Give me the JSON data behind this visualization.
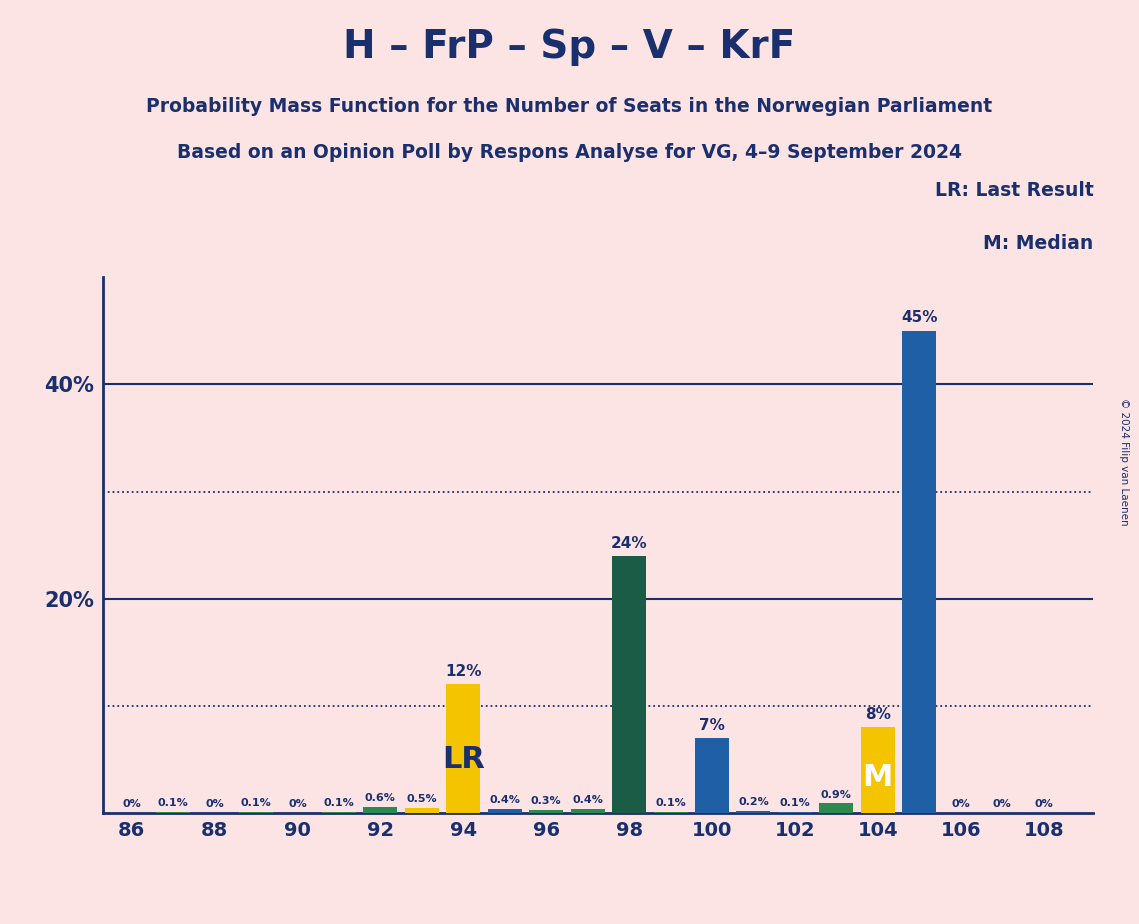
{
  "title": "H – FrP – Sp – V – KrF",
  "subtitle1": "Probability Mass Function for the Number of Seats in the Norwegian Parliament",
  "subtitle2": "Based on an Opinion Poll by Respons Analyse for VG, 4–9 September 2024",
  "copyright": "© 2024 Filip van Laenen",
  "background_color": "#fce4e4",
  "bar_data": [
    {
      "seat": 86,
      "value": 0.0,
      "color": "#1f5fa6",
      "label": "0%"
    },
    {
      "seat": 87,
      "value": 0.1,
      "color": "#2d8a4e",
      "label": "0.1%"
    },
    {
      "seat": 88,
      "value": 0.0,
      "color": "#1f5fa6",
      "label": "0%"
    },
    {
      "seat": 89,
      "value": 0.1,
      "color": "#2d8a4e",
      "label": "0.1%"
    },
    {
      "seat": 90,
      "value": 0.0,
      "color": "#1f5fa6",
      "label": "0%"
    },
    {
      "seat": 91,
      "value": 0.1,
      "color": "#2d8a4e",
      "label": "0.1%"
    },
    {
      "seat": 92,
      "value": 0.6,
      "color": "#2d8a4e",
      "label": "0.6%"
    },
    {
      "seat": 93,
      "value": 0.5,
      "color": "#f5c400",
      "label": "0.5%"
    },
    {
      "seat": 94,
      "value": 12.0,
      "color": "#f5c400",
      "label": "12%",
      "lr": true
    },
    {
      "seat": 95,
      "value": 0.4,
      "color": "#1f5fa6",
      "label": "0.4%"
    },
    {
      "seat": 96,
      "value": 0.3,
      "color": "#2d8a4e",
      "label": "0.3%"
    },
    {
      "seat": 97,
      "value": 0.4,
      "color": "#2d8a4e",
      "label": "0.4%"
    },
    {
      "seat": 98,
      "value": 24.0,
      "color": "#1a5c45",
      "label": "24%"
    },
    {
      "seat": 99,
      "value": 0.1,
      "color": "#2d8a4e",
      "label": "0.1%"
    },
    {
      "seat": 100,
      "value": 7.0,
      "color": "#1f5fa6",
      "label": "7%"
    },
    {
      "seat": 101,
      "value": 0.2,
      "color": "#1f5fa6",
      "label": "0.2%"
    },
    {
      "seat": 102,
      "value": 0.1,
      "color": "#1f5fa6",
      "label": "0.1%"
    },
    {
      "seat": 103,
      "value": 0.9,
      "color": "#2d8a4e",
      "label": "0.9%"
    },
    {
      "seat": 104,
      "value": 8.0,
      "color": "#f5c400",
      "label": "8%",
      "median": true
    },
    {
      "seat": 105,
      "value": 45.0,
      "color": "#1f5fa6",
      "label": "45%"
    },
    {
      "seat": 106,
      "value": 0.0,
      "color": "#1f5fa6",
      "label": "0%"
    },
    {
      "seat": 107,
      "value": 0.0,
      "color": "#1f5fa6",
      "label": "0%"
    },
    {
      "seat": 108,
      "value": 0.0,
      "color": "#1f5fa6",
      "label": "0%"
    }
  ],
  "xlim": [
    85.3,
    109.2
  ],
  "ylim": [
    0,
    50
  ],
  "dotted_lines": [
    10,
    30
  ],
  "solid_lines": [
    20,
    40
  ],
  "title_color": "#1a2f6e",
  "subtitle_color": "#1a2f6e",
  "axis_color": "#1a2f6e",
  "tick_color": "#1a2f6e",
  "bar_text_color": "#1a2f6e",
  "lr_label": "LR",
  "median_label": "M",
  "legend_lr": "LR: Last Result",
  "legend_m": "M: Median"
}
